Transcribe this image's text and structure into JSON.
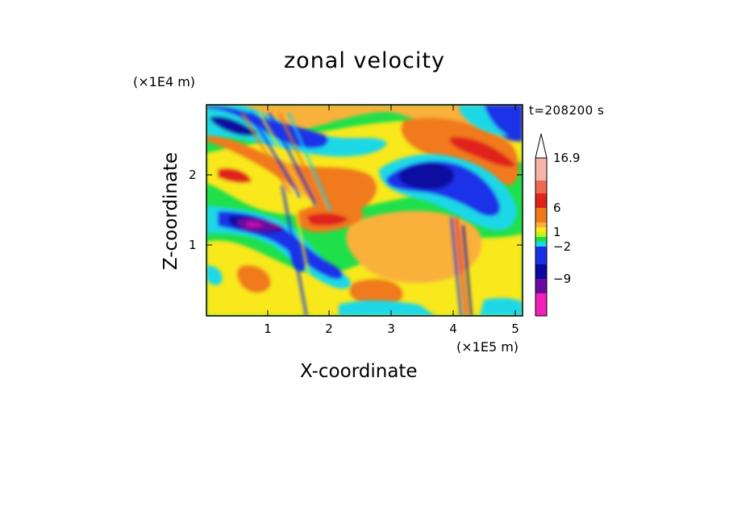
{
  "chart_data": {
    "type": "heatmap",
    "title": "zonal velocity",
    "xlabel": "X-coordinate",
    "ylabel": "Z-coordinate",
    "x_unit": "(×1E5 m)",
    "y_unit": "(×1E4 m)",
    "annotation": "t=208200 s",
    "xlim": [
      0,
      5.15
    ],
    "ylim": [
      0,
      2.95
    ],
    "x_ticks": [
      "1",
      "2",
      "3",
      "4",
      "5"
    ],
    "y_ticks": [
      "1",
      "2"
    ],
    "colorbar": {
      "tick_labels": [
        "16.9",
        "6",
        "1",
        "−2",
        "−9"
      ],
      "max_label": "16.9",
      "extend_arrow": "top"
    },
    "palette": {
      "very_strong_positive": "#f5b5a8",
      "strong_positive": "#ee6a57",
      "red": "#e0221a",
      "orange": "#f07a1a",
      "light_orange": "#f9b13a",
      "yellow": "#f8e81a",
      "green": "#1fe04a",
      "cyan": "#1ad8e6",
      "blue": "#1a30e8",
      "dark_blue": "#0a0aa0",
      "purple": "#6a0aa0",
      "magenta": "#c00aa8",
      "pink": "#f020b8"
    }
  }
}
